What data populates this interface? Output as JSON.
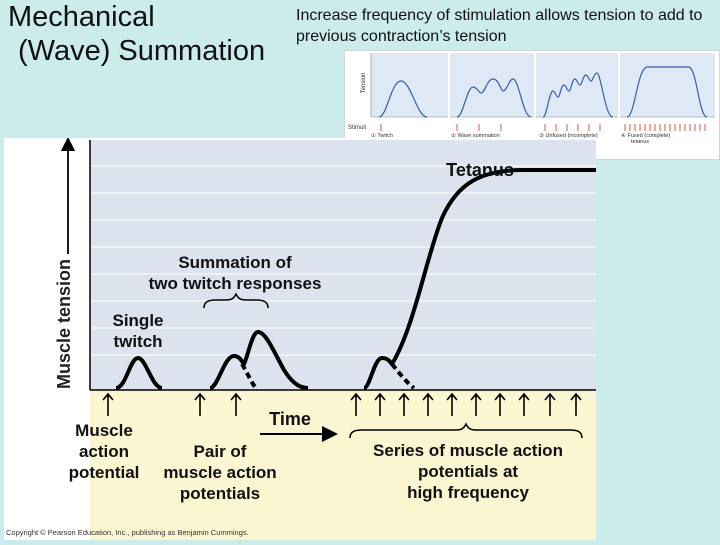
{
  "slide": {
    "title_line1": "Mechanical",
    "title_line2": "(Wave) Summation",
    "subtitle": "Increase frequency of stimulation allows tension to add to previous contraction’s tension"
  },
  "inset": {
    "tension_label": "Tension",
    "stimuli_label": "Stimuli",
    "panels": [
      {
        "label": "① Twitch"
      },
      {
        "label": "② Wave summation"
      },
      {
        "label": "③ Unfused (incomplete)",
        "label2": "tetanus"
      },
      {
        "label": "④ Fused (complete)",
        "label2": "tetanus"
      }
    ],
    "copyright": "Copyright © 2001 Benjamin Cummings, an imprint of Addison Wesley Longman, Inc."
  },
  "diagram": {
    "y_axis_label": "Muscle tension",
    "x_axis_label": "Time",
    "tetanus_label": "Tetanus",
    "summation_label_1": "Summation of",
    "summation_label_2": "two twitch responses",
    "single_twitch_1": "Single",
    "single_twitch_2": "twitch",
    "muscle_ap_1": "Muscle",
    "muscle_ap_2": "action",
    "muscle_ap_3": "potential",
    "pair_1": "Pair of",
    "pair_2": "muscle action",
    "pair_3": "potentials",
    "series_1": "Series of muscle action",
    "series_2": "potentials at",
    "series_3": "high frequency",
    "copyright": "Copyright © Pearson Education, Inc., publishing as Benjamin Cummings."
  },
  "colors": {
    "background": "#ccecec",
    "stimulus_band": "#fbf5d2",
    "curve_blue": "#3a5fa8",
    "stimulus_red": "#cc2a2a"
  }
}
